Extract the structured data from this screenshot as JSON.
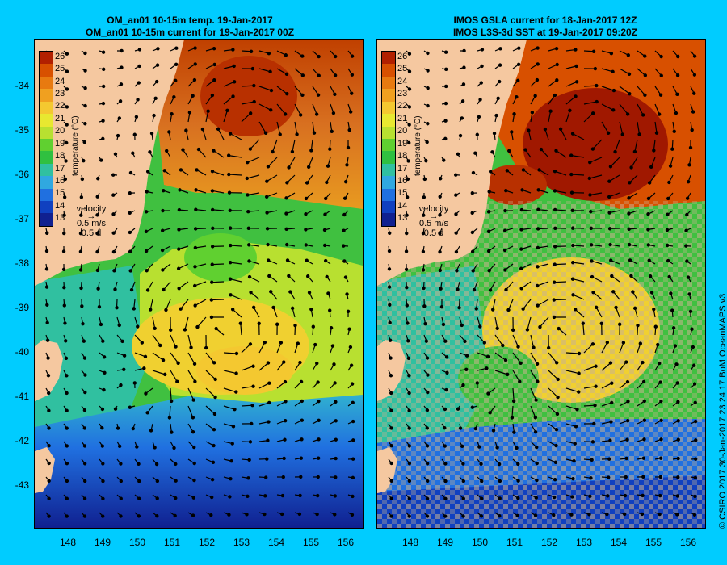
{
  "left_panel": {
    "title_line1": "OM_an01 10-15m temp. 19-Jan-2017",
    "title_line2": "OM_an01 10-15m current for 19-Jan-2017 00Z"
  },
  "right_panel": {
    "title_line1": "IMOS GSLA current for 18-Jan-2017 12Z",
    "title_line2": "IMOS L3S-3d SST at 19-Jan-2017 09:20Z"
  },
  "colorbar": {
    "title": "temperature (°C)",
    "labels": [
      "26",
      "25",
      "24",
      "23",
      "22",
      "21",
      "20",
      "19",
      "18",
      "17",
      "16",
      "15",
      "14",
      "13"
    ],
    "colors": [
      "#b22000",
      "#d85000",
      "#e87a10",
      "#f0a020",
      "#f4c830",
      "#e8e830",
      "#b8e030",
      "#60d030",
      "#30c040",
      "#30c0a0",
      "#30a8e0",
      "#2070e0",
      "#1040c0",
      "#102090"
    ]
  },
  "velocity_legend": {
    "label": "velocity",
    "speed": "0.5 m/s",
    "time": "0.5 d"
  },
  "axes": {
    "x_ticks": [
      "148",
      "149",
      "150",
      "151",
      "152",
      "153",
      "154",
      "155",
      "156"
    ],
    "y_ticks": [
      "-34",
      "-35",
      "-36",
      "-37",
      "-38",
      "-39",
      "-40",
      "-41",
      "-42",
      "-43"
    ]
  },
  "credit": "© CSIRO 2017   30-Jan-2017 23:24:17 BoM OceanMAPS v3"
}
